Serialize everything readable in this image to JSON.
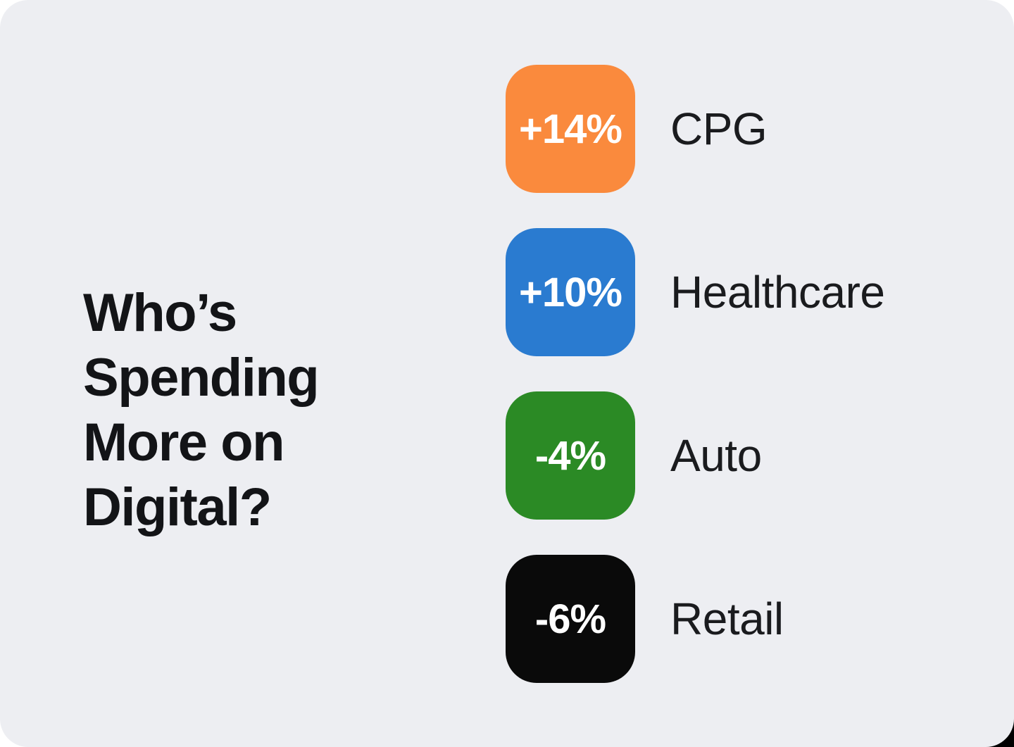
{
  "page": {
    "background": "#FFFFFF",
    "card_background": "#EDEEF2",
    "corner_accent": "#000000"
  },
  "title": {
    "text": "Who’s\nSpending\nMore on\nDigital?",
    "full": "Who’s Spending More on Digital?"
  },
  "items": [
    {
      "value": "+14%",
      "label": "CPG",
      "color": "#FA8A3D"
    },
    {
      "value": "+10%",
      "label": "Healthcare",
      "color": "#2A7BD0"
    },
    {
      "value": "-4%",
      "label": "Auto",
      "color": "#2B8A25"
    },
    {
      "value": "-6%",
      "label": "Retail",
      "color": "#0A0A0A"
    }
  ],
  "chart_data": {
    "type": "table",
    "title": "Who’s Spending More on Digital?",
    "categories": [
      "CPG",
      "Healthcare",
      "Auto",
      "Retail"
    ],
    "values": [
      14,
      10,
      -4,
      -6
    ],
    "value_labels": [
      "+14%",
      "+10%",
      "-4%",
      "-6%"
    ],
    "unit": "%",
    "colors": [
      "#FA8A3D",
      "#2A7BD0",
      "#2B8A25",
      "#0A0A0A"
    ],
    "legend_position": "none",
    "grid": false
  }
}
